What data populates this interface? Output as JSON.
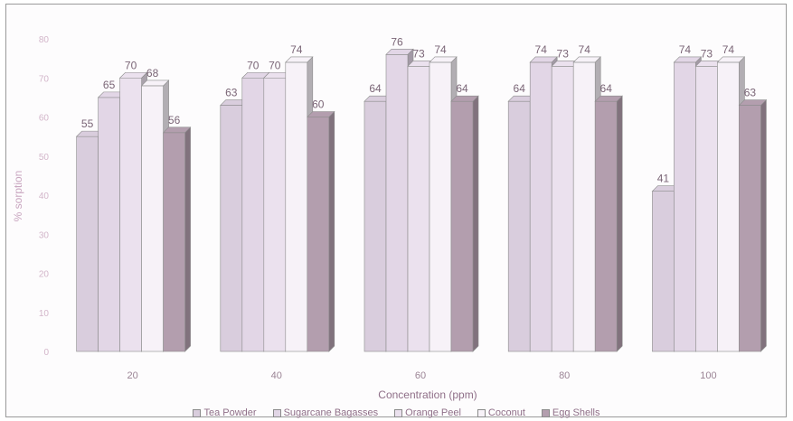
{
  "chart_data": {
    "type": "bar",
    "title": "",
    "xlabel": "Concentration (ppm)",
    "ylabel": "% sorption",
    "ylim": [
      0,
      80
    ],
    "yticks": [
      0,
      10,
      20,
      30,
      40,
      50,
      60,
      70,
      80
    ],
    "categories": [
      "20",
      "40",
      "60",
      "80",
      "100"
    ],
    "series": [
      {
        "name": "Tea Powder",
        "values": [
          55,
          63,
          64,
          64,
          41
        ],
        "color": "#d9cddd"
      },
      {
        "name": "Sugarcane Bagasses",
        "values": [
          65,
          70,
          76,
          74,
          74
        ],
        "color": "#e2d6e6"
      },
      {
        "name": "Orange Peel",
        "values": [
          70,
          70,
          73,
          73,
          73
        ],
        "color": "#ebe1ee"
      },
      {
        "name": "Coconut",
        "values": [
          68,
          74,
          74,
          74,
          74
        ],
        "color": "#f7f2f8"
      },
      {
        "name": "Egg Shells",
        "values": [
          56,
          60,
          64,
          64,
          63
        ],
        "color": "#b39eae"
      }
    ],
    "data_labels": [
      [
        "55",
        "63",
        "64",
        "64",
        "41"
      ],
      [
        "65",
        "70",
        "76",
        "74",
        "74"
      ],
      [
        "70",
        "70",
        "73",
        "73",
        "73"
      ],
      [
        "68",
        "74",
        "74",
        "74",
        "74"
      ],
      [
        "56",
        "60",
        "64",
        "64",
        "63"
      ]
    ],
    "grid": false,
    "legend_position": "bottom"
  }
}
